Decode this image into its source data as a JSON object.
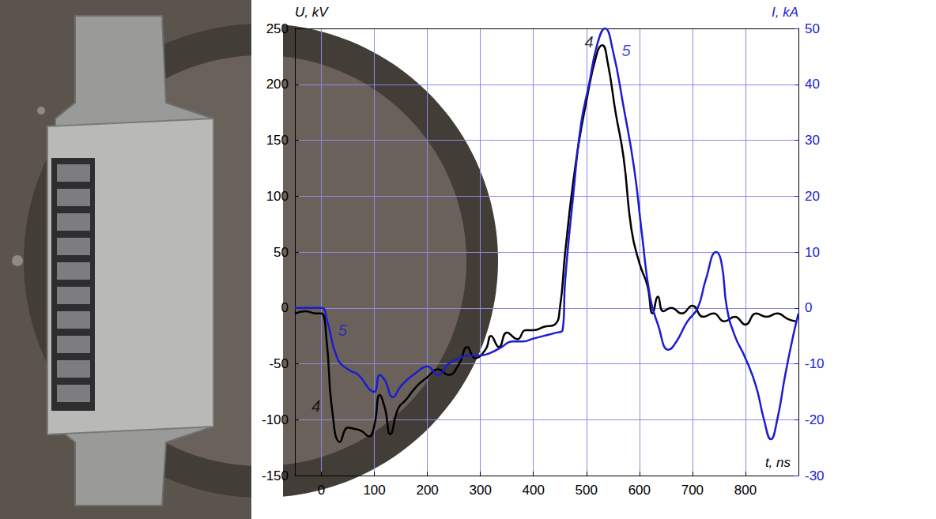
{
  "chart_data": {
    "type": "line",
    "x_label": "t, ns",
    "y_label": "U, kV",
    "y2_label": "I, kA",
    "xlim": [
      -50,
      900
    ],
    "xticks": [
      0,
      100,
      200,
      300,
      400,
      500,
      600,
      700,
      800
    ],
    "ylim": [
      -150,
      250
    ],
    "yticks": [
      -150,
      -100,
      -50,
      0,
      50,
      100,
      150,
      200,
      250
    ],
    "y2lim": [
      -30,
      50
    ],
    "y2ticks": [
      -30,
      -20,
      -10,
      0,
      10,
      20,
      30,
      40,
      50
    ],
    "grid": true,
    "series": [
      {
        "name": "4",
        "color": "#000000",
        "axis": "y",
        "x": [
          -50,
          -30,
          -10,
          0,
          10,
          20,
          35,
          50,
          60,
          75,
          90,
          100,
          110,
          120,
          130,
          145,
          160,
          180,
          200,
          220,
          240,
          260,
          275,
          290,
          310,
          320,
          335,
          350,
          370,
          385,
          400,
          420,
          440,
          450,
          460,
          480,
          500,
          520,
          530,
          540,
          555,
          570,
          585,
          600,
          615,
          625,
          635,
          645,
          660,
          680,
          700,
          720,
          740,
          760,
          780,
          800,
          820,
          840,
          860,
          880,
          895
        ],
        "values": [
          -5,
          -3,
          -5,
          -5,
          -30,
          -90,
          -120,
          -107,
          -108,
          -110,
          -115,
          -105,
          -78,
          -90,
          -113,
          -90,
          -82,
          -70,
          -62,
          -55,
          -60,
          -50,
          -35,
          -45,
          -37,
          -25,
          -35,
          -22,
          -28,
          -20,
          -20,
          -17,
          -15,
          0,
          50,
          130,
          185,
          228,
          235,
          220,
          175,
          135,
          70,
          40,
          20,
          -5,
          10,
          -3,
          0,
          -5,
          2,
          -8,
          -5,
          -12,
          -8,
          -15,
          -5,
          -8,
          -5,
          -10,
          -12
        ]
      },
      {
        "name": "5",
        "color": "#1c1cd0",
        "axis": "y2",
        "x": [
          -50,
          0,
          10,
          30,
          50,
          70,
          90,
          100,
          110,
          120,
          135,
          150,
          180,
          200,
          220,
          240,
          260,
          280,
          300,
          320,
          340,
          360,
          380,
          400,
          420,
          440,
          455,
          460,
          475,
          490,
          505,
          520,
          535,
          550,
          570,
          590,
          605,
          620,
          635,
          655,
          670,
          690,
          710,
          725,
          745,
          755,
          765,
          780,
          800,
          820,
          835,
          848,
          860,
          875,
          890,
          900
        ],
        "values": [
          0,
          0,
          -2,
          -9,
          -11,
          -12,
          -14.5,
          -15,
          -12,
          -13,
          -16,
          -14,
          -11.5,
          -10.5,
          -12,
          -10,
          -9,
          -8.5,
          -8.5,
          -8,
          -7,
          -6,
          -6,
          -5.5,
          -5,
          -4.5,
          -4,
          5,
          20,
          33,
          40,
          47,
          50,
          46,
          36,
          25,
          13,
          2,
          -3,
          -7.5,
          -6,
          -2.5,
          0,
          5,
          10,
          8,
          0,
          -5,
          -9,
          -14,
          -20,
          -23.5,
          -20,
          -12,
          -5,
          -1
        ]
      }
    ],
    "annotations": [
      {
        "text": "4",
        "x": -10,
        "y": -88,
        "axis": "y",
        "color": "#000000"
      },
      {
        "text": "5",
        "x": 40,
        "y": -4,
        "axis": "y2",
        "color": "#1c1cd0"
      },
      {
        "text": "4",
        "x": 505,
        "y": 238,
        "axis": "y",
        "color": "#000000"
      },
      {
        "text": "5",
        "x": 575,
        "y": 46,
        "axis": "y2",
        "color": "#1c1cd0"
      }
    ]
  }
}
